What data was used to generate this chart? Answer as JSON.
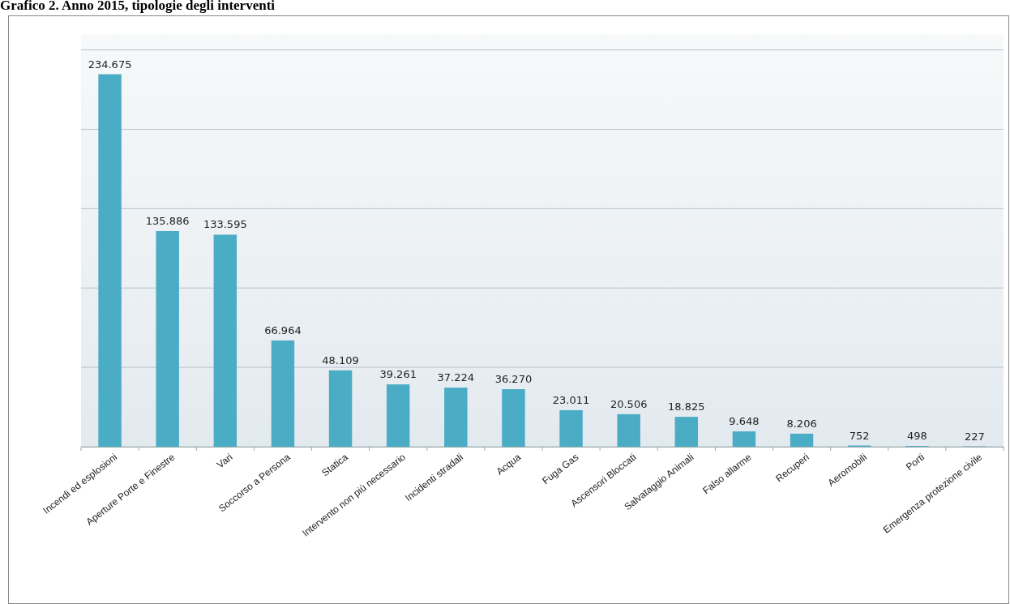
{
  "chart_data": {
    "type": "bar",
    "title": "Grafico 2. Anno 2015,  tipologie degli interventi",
    "categories": [
      "Incendi ed esplosioni",
      "Aperture Porte e Finestre",
      "Vari",
      "Soccorso a Persona",
      "Statica",
      "Intervento non più necessario",
      "Incidenti stradali",
      "Acqua",
      "Fuga Gas",
      "Ascensori Bloccati",
      "Salvataggio Animali",
      "Falso allarme",
      "Recuperi",
      "Aeromobili",
      "Porti",
      "Emergenza protezione civile"
    ],
    "values": [
      234675,
      135886,
      133595,
      66964,
      48109,
      39261,
      37224,
      36270,
      23011,
      20506,
      18825,
      9648,
      8206,
      752,
      498,
      227
    ],
    "value_labels": [
      "234.675",
      "135.886",
      "133.595",
      "66.964",
      "48.109",
      "39.261",
      "37.224",
      "36.270",
      "23.011",
      "20.506",
      "18.825",
      "9.648",
      "8.206",
      "752",
      "498",
      "227"
    ],
    "color": "#4bacc6",
    "ylim": [
      0,
      260000
    ],
    "yticks": [
      {
        "value": 0,
        "label": null
      },
      {
        "value": 50000,
        "label": null
      },
      {
        "value": 100000,
        "label": null
      },
      {
        "value": 150000,
        "label": null
      },
      {
        "value": 200000,
        "label": null
      },
      {
        "value": 250000,
        "label": null
      }
    ],
    "tick_labels": "x",
    "grid": "y"
  }
}
